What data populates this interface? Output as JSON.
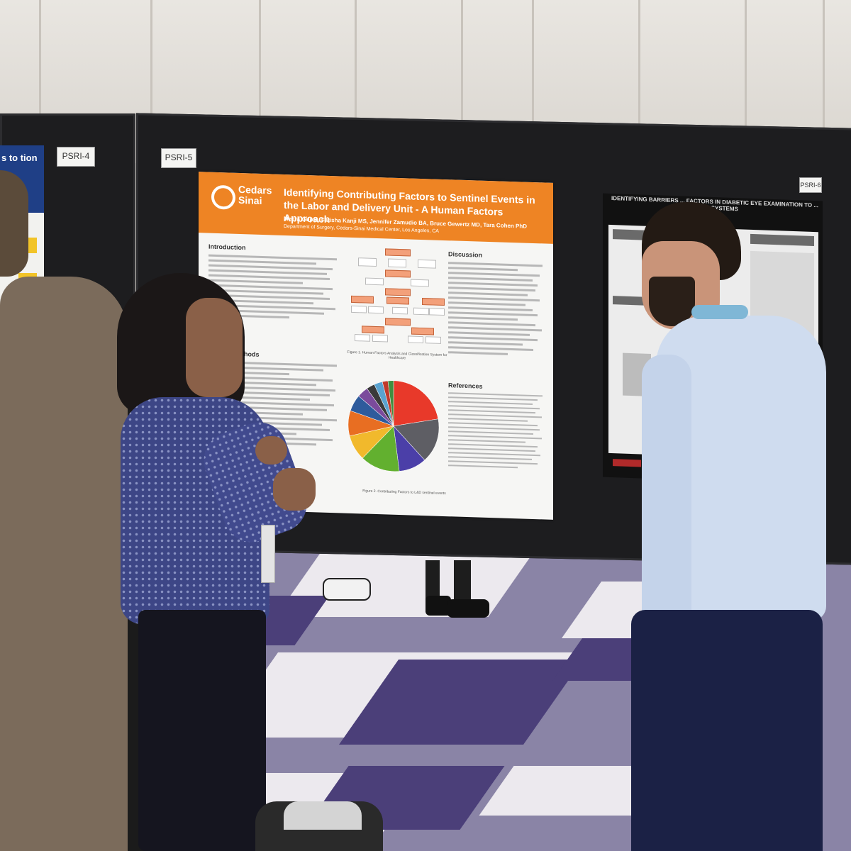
{
  "board_tags": {
    "left": "PSRI-4",
    "center": "PSRI-5",
    "right": "PSRI-6"
  },
  "main_poster": {
    "logo_text": "Cedars Sinai",
    "title": "Identifying Contributing Factors to Sentinel Events in the Labor and Delivery Unit - A Human Factors Approach",
    "authors": "Meera Gupta, Fatisha Kanji MS, Jennifer Zamudio BA, Bruce Gewertz MD, Tara Cohen PhD",
    "department": "Department of Surgery, Cedars-Sinai Medical Center, Los Angeles, CA",
    "sections": {
      "introduction": "Introduction",
      "methods": "and Methods",
      "discussion": "Discussion",
      "references": "References"
    },
    "figure1_caption": "Figure 1. Human Factors Analysis and Classification System for Healthcare",
    "figure2_caption": "Figure 2. Contributing Factors to L&D sentinel events",
    "pie": {
      "colors": [
        "#e8392a",
        "#5e5e64",
        "#4b3fa8",
        "#62b02f",
        "#f1b92c",
        "#e86e22",
        "#2e5b9c",
        "#7b4b9c",
        "#3a3a3a",
        "#5aa3d0",
        "#c0392b",
        "#3f8f3f"
      ],
      "fractions": [
        0.22,
        0.16,
        0.1,
        0.14,
        0.09,
        0.09,
        0.06,
        0.04,
        0.03,
        0.03,
        0.02,
        0.02
      ]
    }
  },
  "right_poster": {
    "title": "IDENTIFYING BARRIERS ... FACTORS IN DIABETIC EYE EXAMINATION TO ... ENING SYSTEMS"
  },
  "left_poster": {
    "title_fragment": "s to tion"
  }
}
